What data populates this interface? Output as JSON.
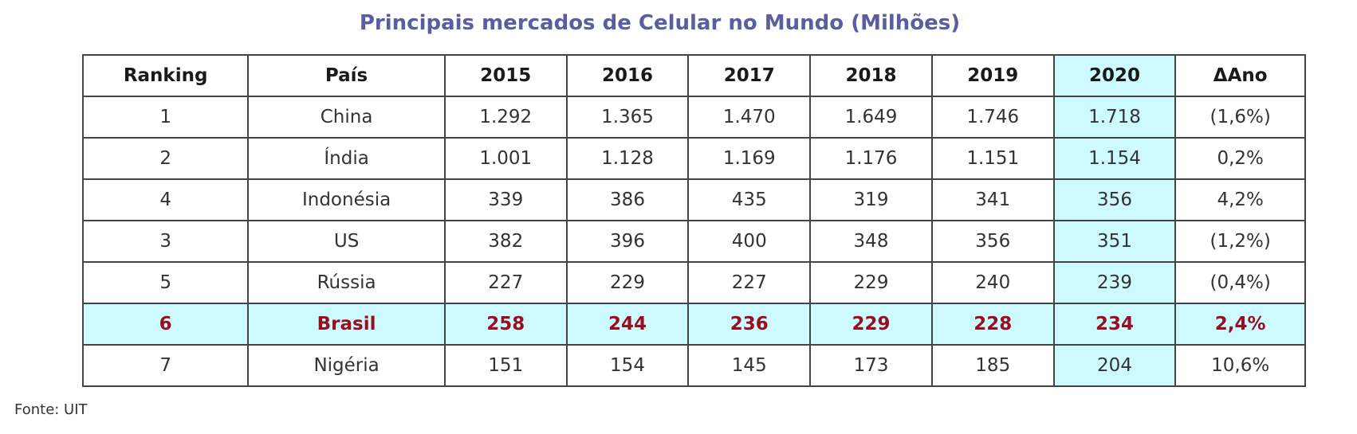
{
  "chart_data": {
    "type": "table",
    "title": "Principais mercados de Celular no Mundo (Milhões)",
    "columns": [
      "Ranking",
      "País",
      "2015",
      "2016",
      "2017",
      "2018",
      "2019",
      "2020",
      "ΔAno"
    ],
    "rows": [
      [
        "1",
        "China",
        "1.292",
        "1.365",
        "1.470",
        "1.649",
        "1.746",
        "1.718",
        "(1,6%)"
      ],
      [
        "2",
        "Índia",
        "1.001",
        "1.128",
        "1.169",
        "1.176",
        "1.151",
        "1.154",
        "0,2%"
      ],
      [
        "4",
        "Indonésia",
        "339",
        "386",
        "435",
        "319",
        "341",
        "356",
        "4,2%"
      ],
      [
        "3",
        "US",
        "382",
        "396",
        "400",
        "348",
        "356",
        "351",
        "(1,2%)"
      ],
      [
        "5",
        "Rússia",
        "227",
        "229",
        "227",
        "229",
        "240",
        "239",
        "(0,4%)"
      ],
      [
        "6",
        "Brasil",
        "258",
        "244",
        "236",
        "229",
        "228",
        "234",
        "2,4%"
      ],
      [
        "7",
        "Nigéria",
        "151",
        "154",
        "145",
        "173",
        "185",
        "204",
        "10,6%"
      ]
    ],
    "highlighted_column": "2020",
    "highlighted_row": "Brasil",
    "colors": {
      "title": "#5a5da0",
      "highlight_fill": "#ccfaff",
      "highlight_text": "#990f1f"
    }
  },
  "source": "Fonte: UIT"
}
